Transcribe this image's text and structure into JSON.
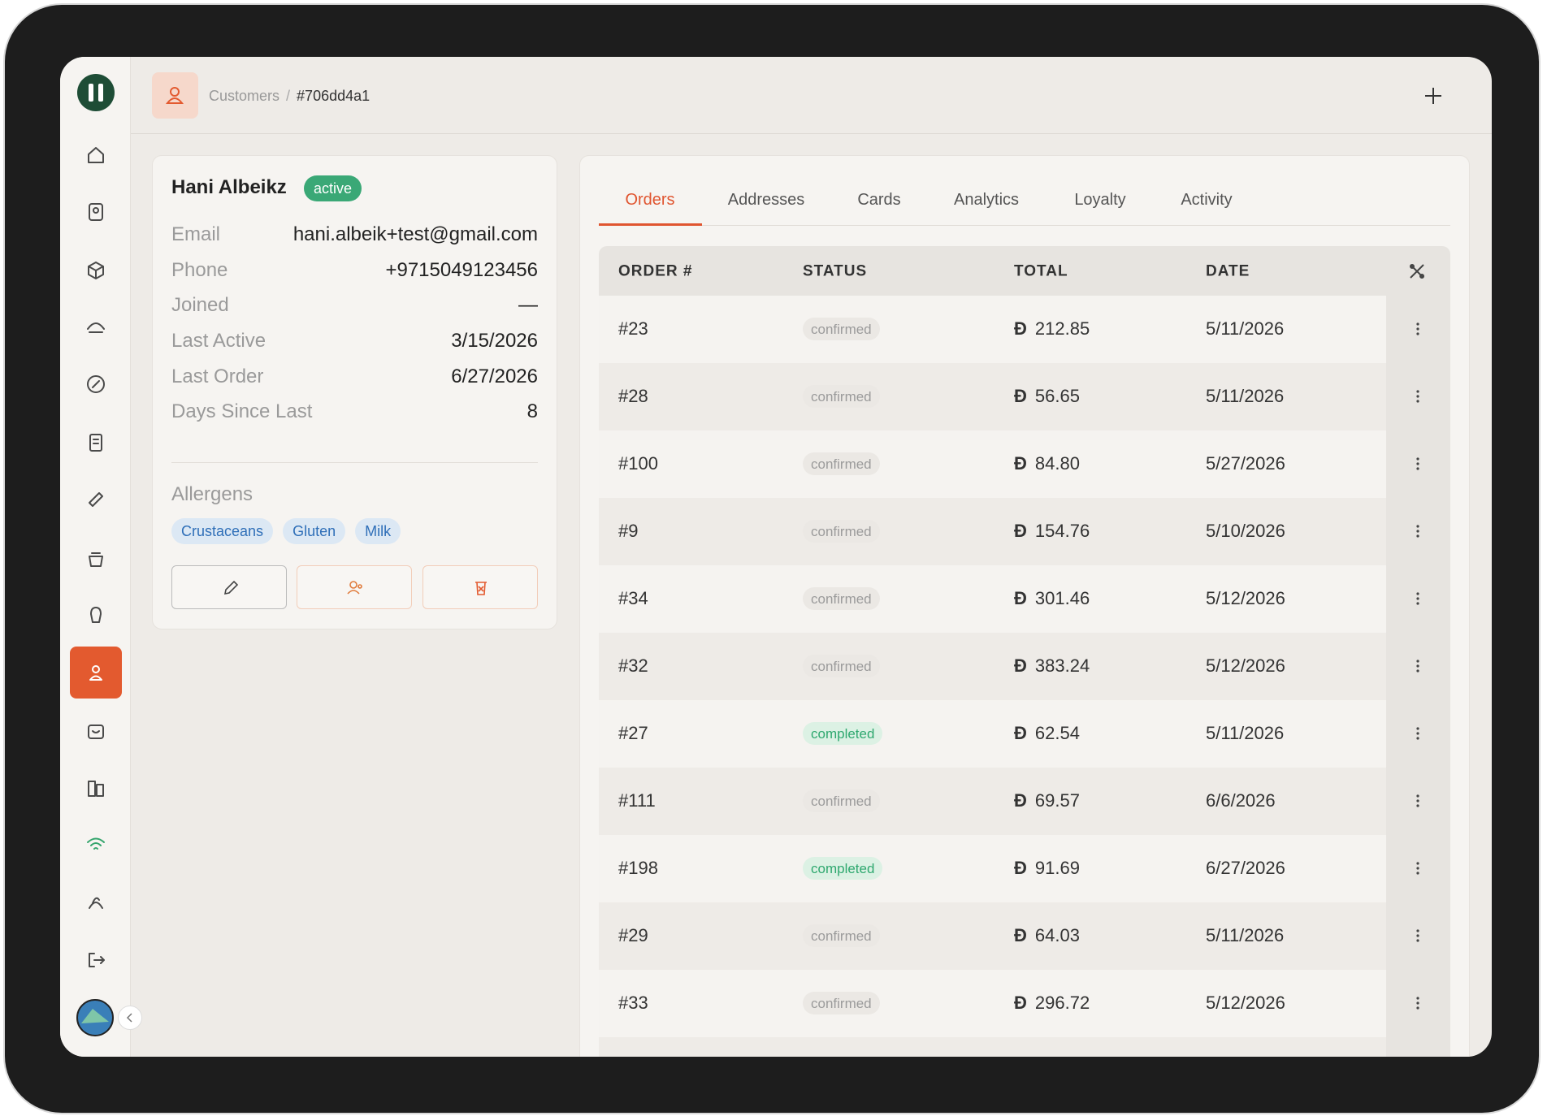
{
  "breadcrumb": {
    "parent": "Customers",
    "current": "#706dd4a1"
  },
  "customer": {
    "name": "Hani Albeikz",
    "status": "active",
    "fields": [
      {
        "label": "Email",
        "value": "hani.albeik+test@gmail.com"
      },
      {
        "label": "Phone",
        "value": "+9715049123456"
      },
      {
        "label": "Joined",
        "value": "—"
      },
      {
        "label": "Last Active",
        "value": "3/15/2026"
      },
      {
        "label": "Last Order",
        "value": "6/27/2026"
      },
      {
        "label": "Days Since Last",
        "value": "8"
      }
    ],
    "allergens_title": "Allergens",
    "allergens": [
      "Crustaceans",
      "Gluten",
      "Milk"
    ]
  },
  "tabs": {
    "items": [
      "Orders",
      "Addresses",
      "Cards",
      "Analytics",
      "Loyalty",
      "Activity"
    ],
    "active": 0
  },
  "orders": {
    "currency": "Đ",
    "columns": [
      "ORDER #",
      "STATUS",
      "TOTAL",
      "DATE"
    ],
    "rows": [
      [
        "#23",
        "confirmed",
        "212.85",
        "5/11/2026"
      ],
      [
        "#28",
        "confirmed",
        "56.65",
        "5/11/2026"
      ],
      [
        "#100",
        "confirmed",
        "84.80",
        "5/27/2026"
      ],
      [
        "#9",
        "confirmed",
        "154.76",
        "5/10/2026"
      ],
      [
        "#34",
        "confirmed",
        "301.46",
        "5/12/2026"
      ],
      [
        "#32",
        "confirmed",
        "383.24",
        "5/12/2026"
      ],
      [
        "#27",
        "completed",
        "62.54",
        "5/11/2026"
      ],
      [
        "#111",
        "confirmed",
        "69.57",
        "6/6/2026"
      ],
      [
        "#198",
        "completed",
        "91.69",
        "6/27/2026"
      ],
      [
        "#29",
        "confirmed",
        "64.03",
        "5/11/2026"
      ],
      [
        "#33",
        "confirmed",
        "296.72",
        "5/12/2026"
      ]
    ]
  }
}
